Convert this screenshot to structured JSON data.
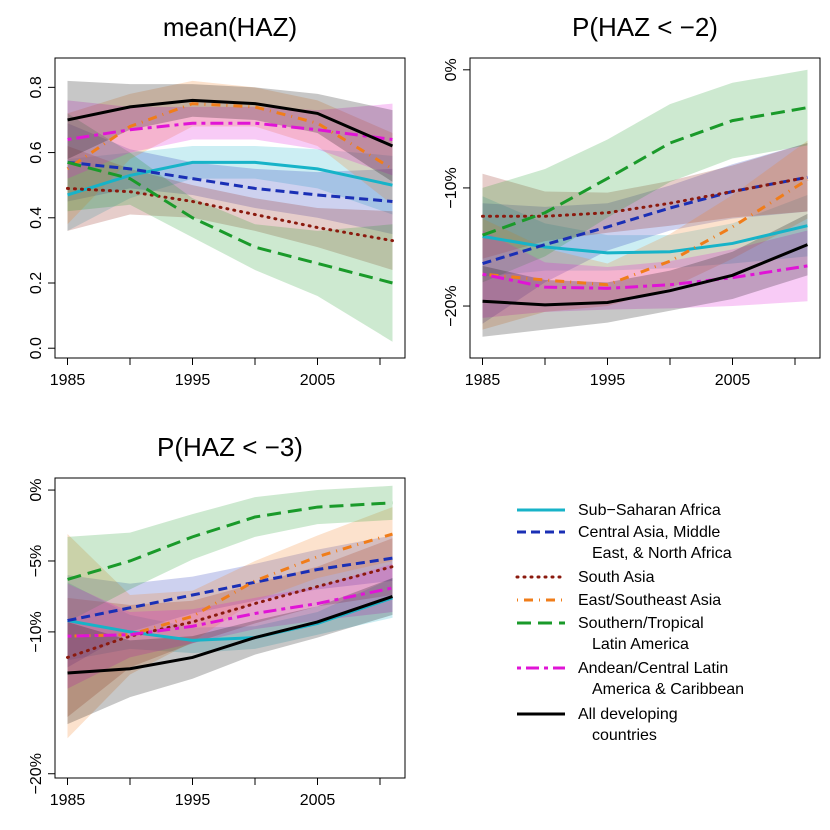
{
  "chart_data": [
    {
      "type": "line",
      "title": "mean(HAZ)",
      "x": [
        1985,
        1990,
        1995,
        2000,
        2005,
        2011
      ],
      "xlim": [
        1984,
        2012
      ],
      "xticks": [
        1985,
        1995,
        2005
      ],
      "xminor": [
        1990,
        2000,
        2010
      ],
      "ylim": [
        -0.03,
        0.89
      ],
      "yticks": [
        {
          "value": 0,
          "label": "0.0"
        },
        0.2,
        0.4,
        0.6,
        0.8
      ],
      "series": [
        {
          "name": "Sub−Saharan Africa",
          "color": "#17b3c8",
          "dash": "solid",
          "values": [
            0.47,
            0.53,
            0.57,
            0.57,
            0.55,
            0.5
          ],
          "lower": [
            0.36,
            0.46,
            0.52,
            0.52,
            0.49,
            0.41
          ],
          "upper": [
            0.58,
            0.6,
            0.62,
            0.62,
            0.61,
            0.59
          ]
        },
        {
          "name": "Central Asia, Middle\nEast, & North Africa",
          "color": "#1a2fb5",
          "dash": "dashed",
          "values": [
            0.57,
            0.55,
            0.52,
            0.49,
            0.47,
            0.45
          ],
          "lower": [
            0.45,
            0.49,
            0.47,
            0.43,
            0.4,
            0.35
          ],
          "upper": [
            0.69,
            0.61,
            0.57,
            0.55,
            0.54,
            0.55
          ]
        },
        {
          "name": "South Asia",
          "color": "#8b1a0e",
          "dash": "dotted",
          "values": [
            0.49,
            0.48,
            0.45,
            0.41,
            0.37,
            0.33
          ],
          "lower": [
            0.36,
            0.41,
            0.4,
            0.36,
            0.31,
            0.24
          ],
          "upper": [
            0.62,
            0.55,
            0.5,
            0.46,
            0.43,
            0.42
          ]
        },
        {
          "name": "East/Southeast Asia",
          "color": "#f07d1a",
          "dash": "dotdash",
          "values": [
            0.55,
            0.68,
            0.75,
            0.74,
            0.69,
            0.55
          ],
          "lower": [
            0.38,
            0.58,
            0.68,
            0.68,
            0.62,
            0.44
          ],
          "upper": [
            0.72,
            0.78,
            0.82,
            0.8,
            0.76,
            0.66
          ]
        },
        {
          "name": "Southern/Tropical\nLatin America",
          "color": "#1a9a2a",
          "dash": "longdash",
          "values": [
            0.57,
            0.52,
            0.4,
            0.31,
            0.26,
            0.2
          ],
          "lower": [
            0.42,
            0.44,
            0.34,
            0.24,
            0.16,
            0.02
          ],
          "upper": [
            0.72,
            0.6,
            0.46,
            0.38,
            0.36,
            0.38
          ]
        },
        {
          "name": "Andean/Central Latin\nAmerica & Caribbean",
          "color": "#e014d6",
          "dash": "twodash",
          "values": [
            0.64,
            0.67,
            0.69,
            0.69,
            0.67,
            0.64
          ],
          "lower": [
            0.52,
            0.6,
            0.64,
            0.64,
            0.61,
            0.53
          ],
          "upper": [
            0.76,
            0.74,
            0.74,
            0.74,
            0.73,
            0.75
          ]
        },
        {
          "name": "All developing\ncountries",
          "color": "#000000",
          "dash": "solid",
          "values": [
            0.7,
            0.74,
            0.76,
            0.75,
            0.72,
            0.62
          ],
          "lower": [
            0.58,
            0.67,
            0.71,
            0.7,
            0.66,
            0.51
          ],
          "upper": [
            0.82,
            0.81,
            0.81,
            0.8,
            0.78,
            0.73
          ]
        }
      ]
    },
    {
      "type": "line",
      "title": "P(HAZ < −2)",
      "x": [
        1985,
        1990,
        1995,
        2000,
        2005,
        2011
      ],
      "xlim": [
        1984,
        2012
      ],
      "xticks": [
        1985,
        1995,
        2005
      ],
      "xminor": [
        1990,
        2000,
        2010
      ],
      "ylim": [
        -24.4,
        1
      ],
      "yticks": [
        {
          "value": 0,
          "label": "0%"
        },
        {
          "value": -10,
          "label": "−10%"
        },
        {
          "value": -20,
          "label": "−20%"
        }
      ],
      "series": [
        {
          "color": "#17b3c8",
          "dash": "solid",
          "values": [
            -14.1,
            -15,
            -15.5,
            -15.4,
            -14.7,
            -13.2
          ],
          "lower": [
            -17.5,
            -17,
            -17,
            -16.8,
            -16.4,
            -15.8
          ],
          "upper": [
            -10.7,
            -13,
            -14,
            -14,
            -13,
            -10.6
          ]
        },
        {
          "color": "#1a2fb5",
          "dash": "dashed",
          "values": [
            -16.4,
            -14.8,
            -13.3,
            -11.7,
            -10.3,
            -9.1
          ],
          "lower": [
            -21.5,
            -18,
            -15.3,
            -13.6,
            -12.6,
            -12
          ],
          "upper": [
            -11.3,
            -11.6,
            -11.3,
            -9.8,
            -8,
            -6.2
          ]
        },
        {
          "color": "#8b1a0e",
          "dash": "dotted",
          "values": [
            -12.4,
            -12.4,
            -12.1,
            -11.3,
            -10.3,
            -9.1
          ],
          "lower": [
            -16,
            -14.5,
            -13.8,
            -13.2,
            -12.5,
            -12
          ],
          "upper": [
            -8.8,
            -10.3,
            -10.4,
            -9.4,
            -8.1,
            -6.2
          ]
        },
        {
          "color": "#f07d1a",
          "dash": "dotdash",
          "values": [
            -17.3,
            -17.8,
            -18.2,
            -16.2,
            -13.3,
            -9.3
          ],
          "lower": [
            -22,
            -20.5,
            -20,
            -18.5,
            -16,
            -12.6
          ],
          "upper": [
            -12.6,
            -15.1,
            -16.4,
            -13.9,
            -10.6,
            -6
          ]
        },
        {
          "color": "#1a9a2a",
          "dash": "longdash",
          "values": [
            -14,
            -12.1,
            -9.2,
            -6.2,
            -4.3,
            -3.2
          ],
          "lower": [
            -18,
            -15.8,
            -12.5,
            -9.5,
            -7.5,
            -6.4
          ],
          "upper": [
            -10,
            -8.4,
            -5.9,
            -2.9,
            -1.1,
            0
          ]
        },
        {
          "color": "#e014d6",
          "dash": "twodash",
          "values": [
            -17.3,
            -18.4,
            -18.5,
            -18.2,
            -17.6,
            -16.6
          ],
          "lower": [
            -21,
            -20.5,
            -20.3,
            -20.2,
            -20,
            -19.6
          ],
          "upper": [
            -13.6,
            -16.3,
            -16.7,
            -16.2,
            -15.2,
            -13.6
          ]
        },
        {
          "color": "#000000",
          "dash": "solid",
          "values": [
            -19.6,
            -19.9,
            -19.7,
            -18.7,
            -17.4,
            -14.8
          ],
          "lower": [
            -22.6,
            -22,
            -21.4,
            -20.4,
            -19.4,
            -17.4
          ],
          "upper": [
            -16.6,
            -17.8,
            -18,
            -17,
            -15.4,
            -12.2
          ]
        }
      ]
    },
    {
      "type": "line",
      "title": "P(HAZ < −3)",
      "x": [
        1985,
        1990,
        1995,
        2000,
        2005,
        2011
      ],
      "xlim": [
        1984,
        2012
      ],
      "xticks": [
        1985,
        1995,
        2005
      ],
      "xminor": [
        1990,
        2000,
        2010
      ],
      "ylim": [
        -20.3,
        0.85
      ],
      "yticks": [
        {
          "value": 0,
          "label": "0%"
        },
        {
          "value": -5,
          "label": "−5%"
        },
        {
          "value": -10,
          "label": "−10%"
        },
        {
          "value": -20,
          "label": "−20%"
        }
      ],
      "series": [
        {
          "color": "#17b3c8",
          "dash": "solid",
          "values": [
            -9.2,
            -10,
            -10.6,
            -10.4,
            -9.4,
            -7.6
          ],
          "lower": [
            -12,
            -11.2,
            -11.5,
            -11.2,
            -10.2,
            -9
          ],
          "upper": [
            -6.5,
            -8.8,
            -9.7,
            -9.6,
            -8.6,
            -6.2
          ]
        },
        {
          "color": "#1a2fb5",
          "dash": "dashed",
          "values": [
            -9.2,
            -8.3,
            -7.4,
            -6.5,
            -5.6,
            -4.8
          ],
          "lower": [
            -12.5,
            -10,
            -8.7,
            -7.8,
            -7,
            -6.4
          ],
          "upper": [
            -6,
            -6.6,
            -6.1,
            -5.2,
            -4.2,
            -3.2
          ]
        },
        {
          "color": "#8b1a0e",
          "dash": "dotted",
          "values": [
            -11.8,
            -10.3,
            -9.3,
            -8,
            -6.8,
            -5.4
          ],
          "lower": [
            -16,
            -12.5,
            -10.8,
            -9.4,
            -8.2,
            -7.4
          ],
          "upper": [
            -7.6,
            -8.1,
            -7.8,
            -6.6,
            -5.4,
            -3.4
          ]
        },
        {
          "color": "#f07d1a",
          "dash": "dotdash",
          "values": [
            -10.3,
            -10.2,
            -8.9,
            -6.4,
            -4.7,
            -3.1
          ],
          "lower": [
            -17.5,
            -13,
            -10.7,
            -7.8,
            -6.2,
            -5
          ],
          "upper": [
            -3.1,
            -7.4,
            -7.1,
            -5,
            -3.2,
            -1.2
          ]
        },
        {
          "color": "#1a9a2a",
          "dash": "longdash",
          "values": [
            -6.3,
            -5,
            -3.3,
            -1.9,
            -1.2,
            -0.9
          ],
          "lower": [
            -9.3,
            -7,
            -4.9,
            -3.3,
            -2.4,
            -2.1
          ],
          "upper": [
            -3.3,
            -3,
            -1.7,
            -0.5,
            0,
            0.3
          ]
        },
        {
          "color": "#e014d6",
          "dash": "twodash",
          "values": [
            -10.3,
            -10.2,
            -9.6,
            -8.7,
            -8,
            -6.9
          ],
          "lower": [
            -14,
            -11.8,
            -10.8,
            -9.8,
            -9.2,
            -8.6
          ],
          "upper": [
            -6.6,
            -8.6,
            -8.4,
            -7.6,
            -6.8,
            -5.2
          ]
        },
        {
          "color": "#000000",
          "dash": "solid",
          "values": [
            -12.9,
            -12.6,
            -11.8,
            -10.4,
            -9.3,
            -7.5
          ],
          "lower": [
            -16.5,
            -14.6,
            -13.3,
            -11.6,
            -10.4,
            -8.8
          ],
          "upper": [
            -9.3,
            -10.6,
            -10.3,
            -9.2,
            -8.2,
            -6.2
          ]
        }
      ]
    }
  ]
}
